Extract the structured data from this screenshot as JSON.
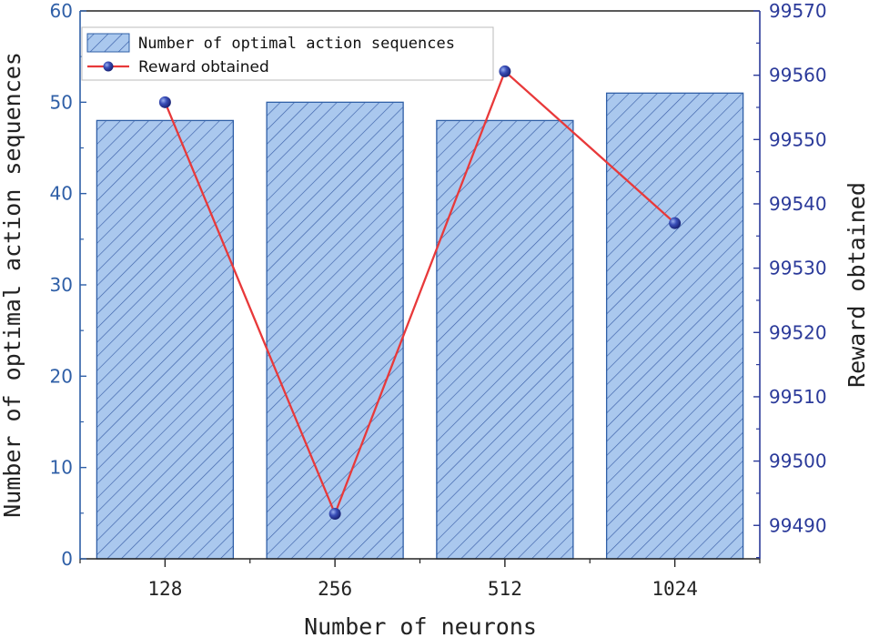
{
  "chart_data": {
    "type": "bar",
    "xlabel": "Number of neurons",
    "categories": [
      "128",
      "256",
      "512",
      "1024"
    ],
    "left_axis": {
      "label": "Number of optimal action sequences",
      "ylim": [
        0,
        60
      ],
      "ticks": [
        "0",
        "10",
        "20",
        "30",
        "40",
        "50",
        "60"
      ],
      "color": "#2f5fa7"
    },
    "right_axis": {
      "label": "Reward obtained",
      "ylim": [
        99484.8,
        99570
      ],
      "ticks": [
        "99490",
        "99500",
        "99510",
        "99520",
        "99530",
        "99540",
        "99550",
        "99560",
        "99570"
      ],
      "color": "#2b3a9a"
    },
    "series": [
      {
        "name": "Number of optimal action sequences",
        "kind": "bar",
        "axis": "left",
        "values": [
          48,
          50,
          48,
          51
        ],
        "fill": "#aac8ee",
        "hatch": "#3a5fa8",
        "edge": "#2f5fa7"
      },
      {
        "name": "Reward obtained",
        "kind": "line",
        "axis": "right",
        "values": [
          99555.8,
          99491.8,
          99560.6,
          99537.0
        ],
        "line_color": "#e8393a",
        "marker_color": "#2b3a9a"
      }
    ],
    "legend": {
      "placement": "top-left"
    },
    "grid": false
  }
}
